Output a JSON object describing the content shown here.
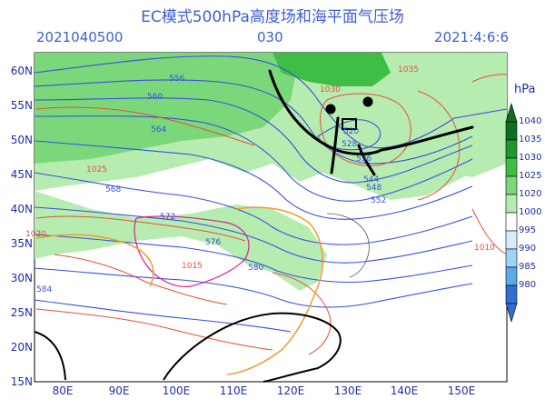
{
  "title": "EC模式500hPa高度场和海平面气压场",
  "header": {
    "init": "2021040500",
    "forecast_hour": "030",
    "valid_time": "2021:4:6:6"
  },
  "unit": "hPa",
  "y_labels": [
    "60N",
    "55N",
    "50N",
    "45N",
    "40N",
    "35N",
    "30N",
    "25N",
    "20N",
    "15N"
  ],
  "x_labels": [
    "80E",
    "90E",
    "100E",
    "110E",
    "120E",
    "130E",
    "140E",
    "150E"
  ],
  "colorbar": {
    "levels": [
      "1040",
      "1035",
      "1030",
      "1025",
      "1020",
      "1000",
      "995",
      "990",
      "985",
      "980"
    ],
    "colors": [
      "#0f6d22",
      "#21942f",
      "#3fbe45",
      "#7ad77a",
      "#b7ecb0",
      "#ffffff",
      "#d6ecfb",
      "#9fd3f5",
      "#5aa9e8",
      "#2f6fd0"
    ]
  },
  "height_contours": [
    "556",
    "560",
    "564",
    "568",
    "572",
    "576",
    "580",
    "584",
    "552",
    "548",
    "544",
    "536",
    "528",
    "520"
  ],
  "pressure_contours": [
    "1035",
    "1030",
    "1025",
    "1020",
    "1015",
    "1010"
  ],
  "colors": {
    "height_line": "#3a4fe0",
    "pressure_line": "#e0523a",
    "terrain_pink": "#d81f8e",
    "terrain_orange": "#f39a2a",
    "coast": "#000000"
  }
}
